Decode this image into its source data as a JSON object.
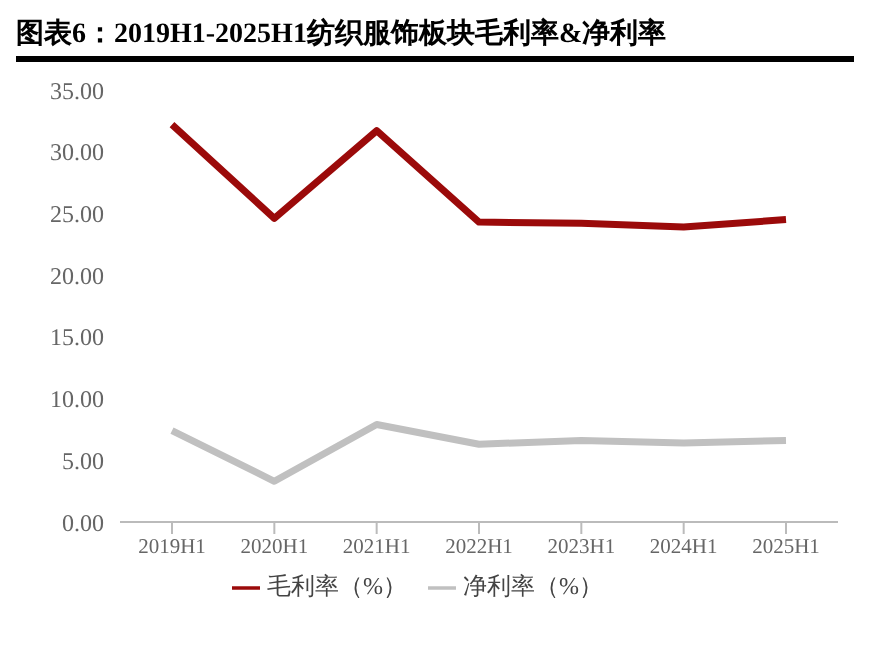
{
  "chart_data": {
    "type": "line",
    "title": "图表6：2019H1-2025H1纺织服饰板块毛利率&净利率",
    "categories": [
      "2019H1",
      "2020H1",
      "2021H1",
      "2022H1",
      "2023H1",
      "2024H1",
      "2025H1"
    ],
    "series": [
      {
        "name": "毛利率（%）",
        "color": "#9b0a0a",
        "values": [
          32.2,
          24.6,
          31.7,
          24.3,
          24.2,
          23.9,
          24.5
        ]
      },
      {
        "name": "净利率（%）",
        "color": "#c0c0c0",
        "values": [
          7.4,
          3.3,
          7.9,
          6.3,
          6.6,
          6.4,
          6.6
        ]
      }
    ],
    "ylim": [
      0,
      35
    ],
    "yticks": [
      {
        "value": 0,
        "label": "0.00"
      },
      {
        "value": 5,
        "label": "5.00"
      },
      {
        "value": 10,
        "label": "10.00"
      },
      {
        "value": 15,
        "label": "15.00"
      },
      {
        "value": 20,
        "label": "20.00"
      },
      {
        "value": 25,
        "label": "25.00"
      },
      {
        "value": 30,
        "label": "30.00"
      },
      {
        "value": 35,
        "label": "35.00"
      }
    ],
    "grid": false,
    "legend": "bottom",
    "marker": "none",
    "line_style": "solid"
  }
}
